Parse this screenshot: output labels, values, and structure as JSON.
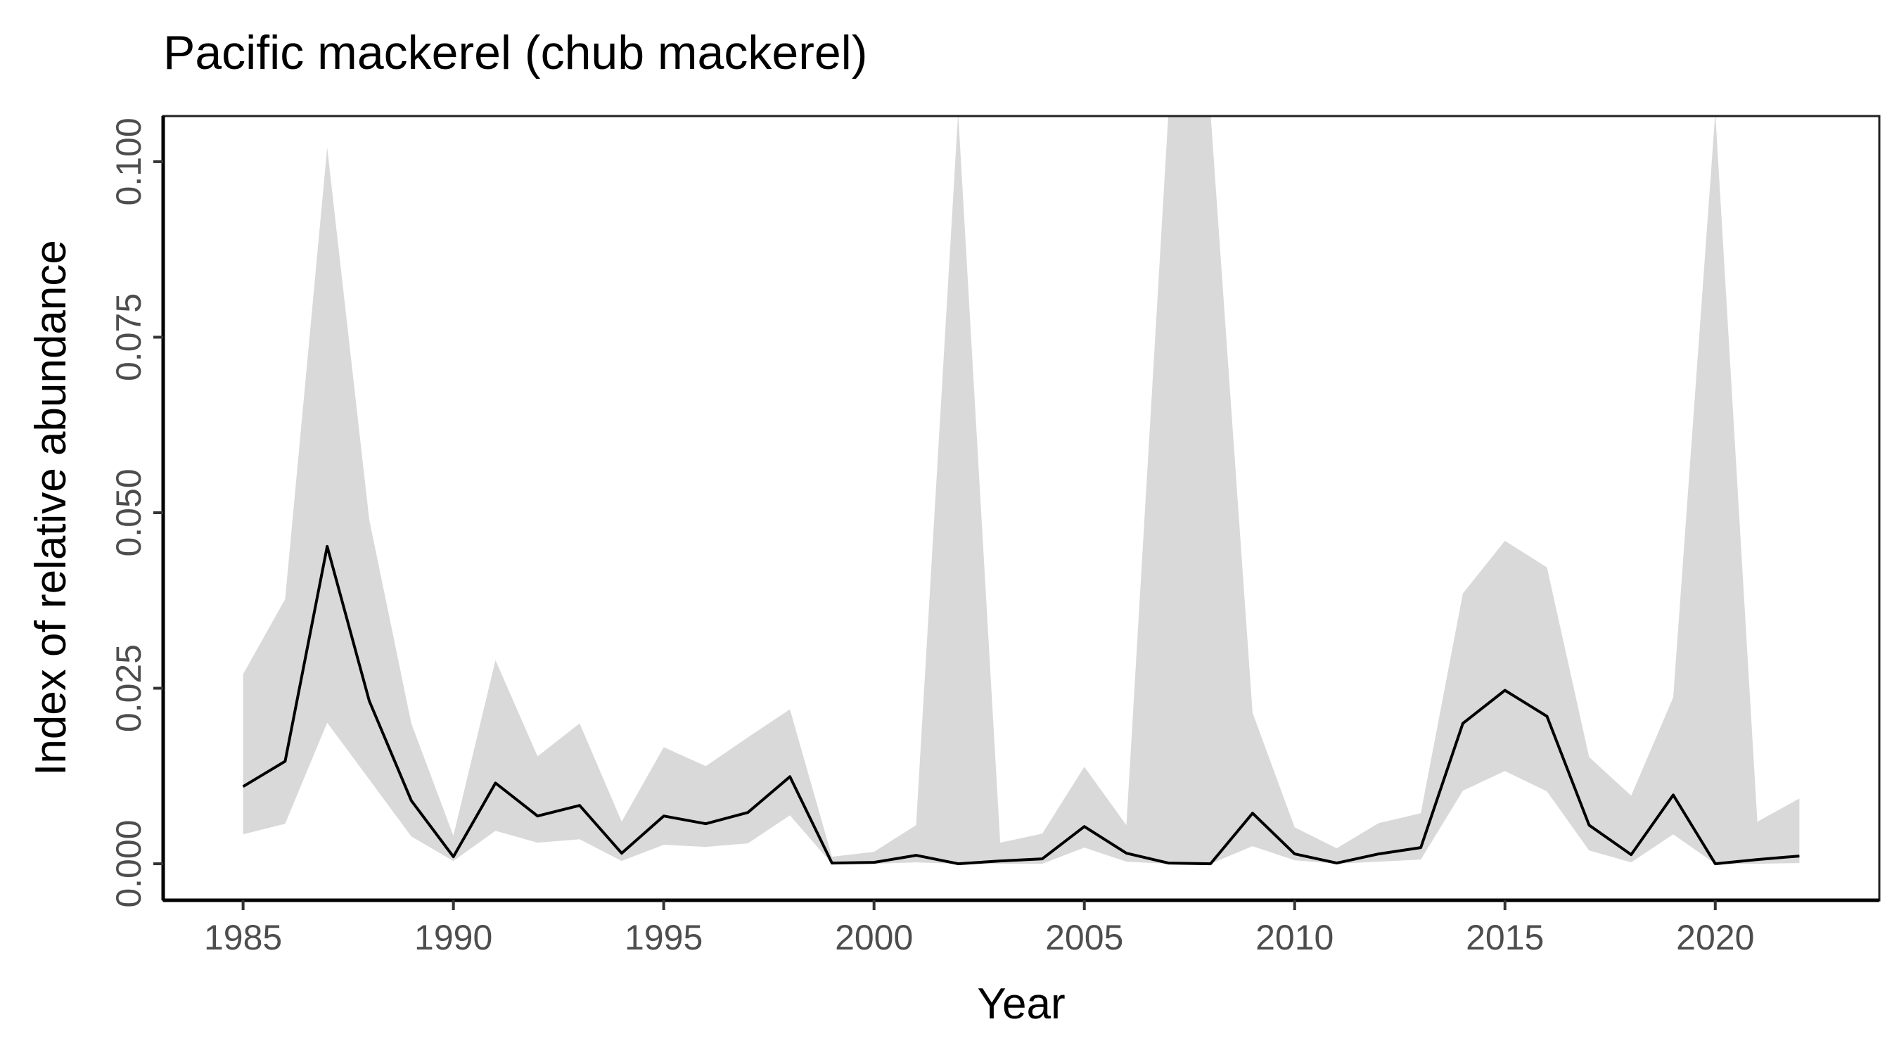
{
  "chart_data": {
    "type": "line",
    "title": "Pacific mackerel (chub mackerel)",
    "xlabel": "Year",
    "ylabel": "Index of relative abundance",
    "xlim": [
      1983.1,
      2023.9
    ],
    "ylim": [
      -0.0052,
      0.1065
    ],
    "xticks": [
      1985,
      1990,
      1995,
      2000,
      2005,
      2010,
      2015,
      2020
    ],
    "yticks": [
      0,
      0.025,
      0.05,
      0.075,
      0.1
    ],
    "ytick_labels": [
      "0.000",
      "0.025",
      "0.050",
      "0.075",
      "0.100"
    ],
    "grid": false,
    "legend": "none",
    "colors": {
      "line": "#000000",
      "ribbon": "#d9d9d9",
      "axis": "#000000",
      "tick_text": "#4d4d4d"
    },
    "x": [
      1985,
      1986,
      1987,
      1988,
      1989,
      1990,
      1991,
      1992,
      1993,
      1994,
      1995,
      1996,
      1997,
      1998,
      1999,
      2000,
      2001,
      2002,
      2003,
      2004,
      2005,
      2006,
      2007,
      2008,
      2009,
      2010,
      2011,
      2012,
      2013,
      2014,
      2015,
      2016,
      2017,
      2018,
      2019,
      2020,
      2021,
      2022
    ],
    "series": [
      {
        "values": [
          0.011,
          0.0146,
          0.0452,
          0.0232,
          0.009,
          0.001,
          0.0115,
          0.0068,
          0.0083,
          0.0015,
          0.0068,
          0.0057,
          0.0073,
          0.0124,
          0.0001,
          0.0002,
          0.0012,
          0.0,
          0.0004,
          0.0007,
          0.0053,
          0.0015,
          0.0001,
          0.0,
          0.0072,
          0.0014,
          0.0001,
          0.0014,
          0.0023,
          0.02,
          0.0247,
          0.021,
          0.0055,
          0.0013,
          0.0098,
          0.0,
          0.0006,
          0.0011
        ],
        "lower": [
          0.0042,
          0.0057,
          0.0201,
          0.012,
          0.0039,
          0.0004,
          0.0047,
          0.003,
          0.0035,
          0.0004,
          0.0027,
          0.0024,
          0.0029,
          0.0069,
          0.0,
          0.0,
          0.0002,
          0.0,
          0.0,
          0.0,
          0.0023,
          0.0003,
          0.0,
          0.0,
          0.0025,
          0.0005,
          0.0,
          0.0003,
          0.0006,
          0.0104,
          0.0132,
          0.0103,
          0.0019,
          0.0002,
          0.0042,
          0.0,
          0.0,
          0.0001
        ],
        "upper": [
          0.027,
          0.0377,
          0.102,
          0.049,
          0.02,
          0.004,
          0.029,
          0.0153,
          0.02,
          0.006,
          0.0166,
          0.0139,
          0.018,
          0.022,
          0.001,
          0.0017,
          0.0055,
          0.107,
          0.003,
          0.0043,
          0.0138,
          0.0055,
          0.107,
          0.107,
          0.0215,
          0.0052,
          0.0022,
          0.0058,
          0.0072,
          0.0385,
          0.046,
          0.0422,
          0.0152,
          0.0097,
          0.0237,
          0.107,
          0.006,
          0.0093
        ]
      }
    ]
  }
}
